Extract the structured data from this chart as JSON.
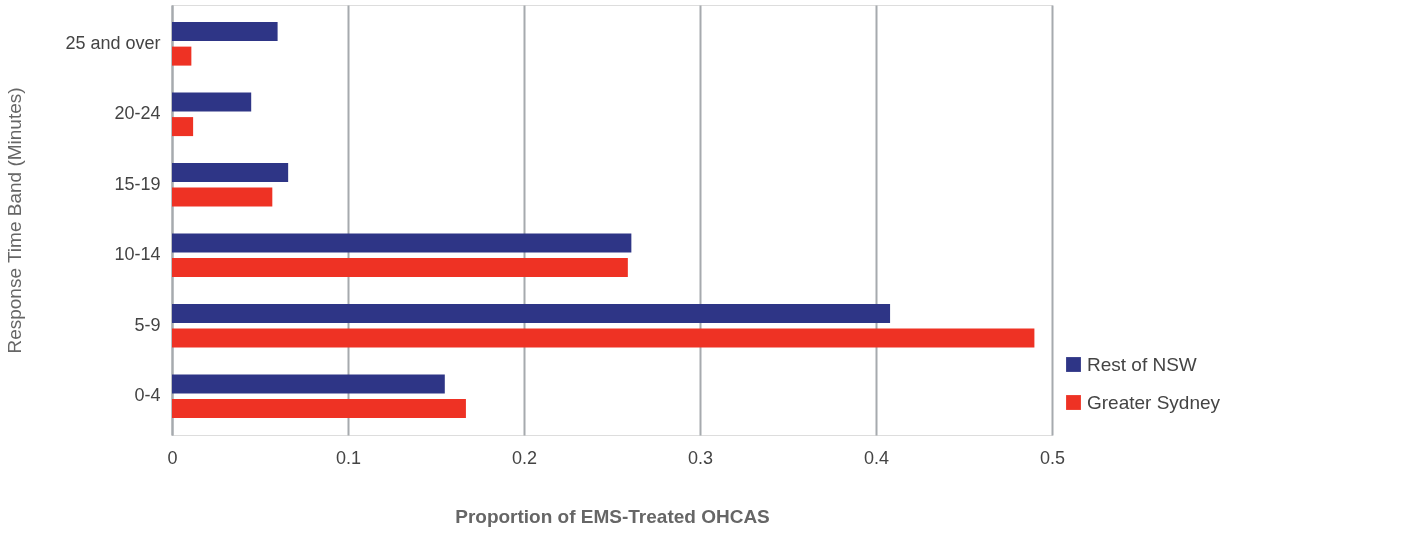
{
  "chart_data": {
    "type": "bar",
    "orientation": "horizontal",
    "xlabel": "Proportion of EMS-Treated OHCAS",
    "ylabel": "Response Time Band (Minutes)",
    "categories": [
      "25 and over",
      "20-24",
      "15-19",
      "10-14",
      "5-9",
      "0-4"
    ],
    "series": [
      {
        "name": "Rest of NSW",
        "color": "#2e3586",
        "values": [
          0.06,
          0.045,
          0.066,
          0.261,
          0.408,
          0.155
        ]
      },
      {
        "name": "Greater Sydney",
        "color": "#ee3224",
        "values": [
          0.011,
          0.012,
          0.057,
          0.259,
          0.49,
          0.167
        ]
      }
    ],
    "xlim": [
      0,
      0.5
    ],
    "xticks": [
      0,
      0.1,
      0.2,
      0.3,
      0.4,
      0.5
    ],
    "grid": "x",
    "legend": "bottom right"
  }
}
